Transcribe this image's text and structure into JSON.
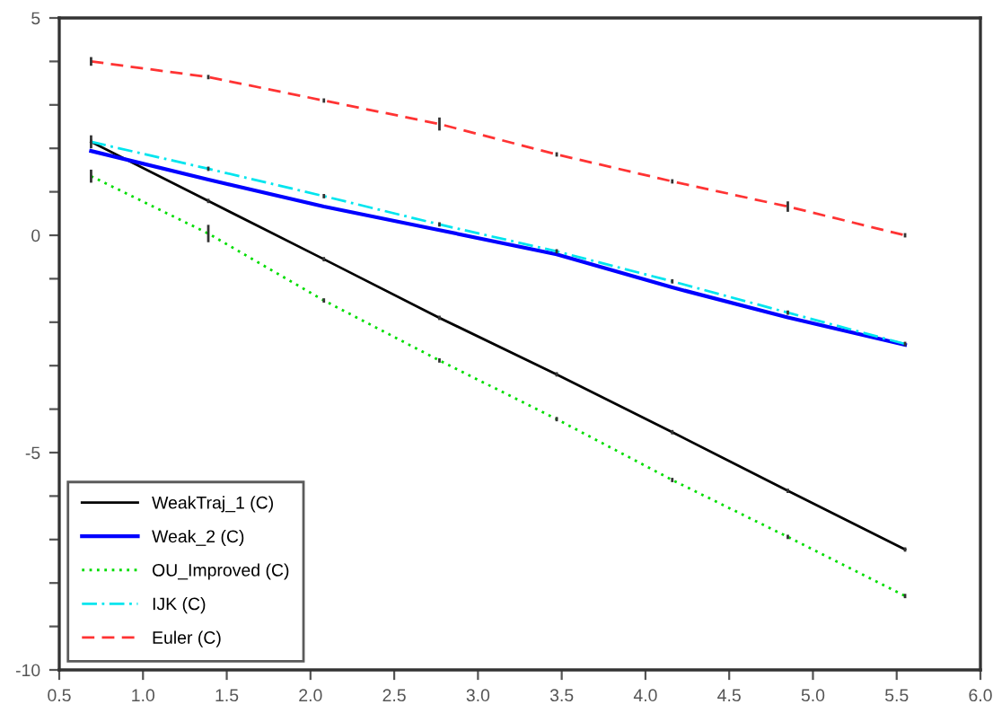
{
  "chart_data": {
    "type": "line",
    "x": [
      0.69,
      1.39,
      2.08,
      2.77,
      3.47,
      4.16,
      4.85,
      5.55
    ],
    "series": [
      {
        "name": "WeakTraj_1 (C)",
        "color": "#000000",
        "line_style": "solid",
        "values": [
          2.15,
          0.79,
          -0.55,
          -1.9,
          -3.2,
          -4.53,
          -5.88,
          -7.23
        ],
        "errors": [
          0.15,
          0.05,
          0.05,
          0.05,
          0.05,
          0.05,
          0.05,
          0.05
        ]
      },
      {
        "name": "Weak_2 (C)",
        "color": "#0000ff",
        "line_style": "solid",
        "values": [
          1.94,
          1.28,
          0.66,
          0.12,
          -0.44,
          -1.2,
          -1.89,
          -2.52
        ]
      },
      {
        "name": "OU_Improved (C)",
        "color": "#00dd00",
        "line_style": "dotted",
        "values": [
          1.36,
          0.04,
          -1.5,
          -2.88,
          -4.23,
          -5.63,
          -6.94,
          -8.3
        ],
        "errors": [
          0.15,
          0.2,
          0.05,
          0.05,
          0.05,
          0.05,
          0.05,
          0.05
        ]
      },
      {
        "name": "IJK (C)",
        "color": "#00e5ee",
        "line_style": "dashdot",
        "values": [
          2.15,
          1.53,
          0.9,
          0.25,
          -0.37,
          -1.06,
          -1.78,
          -2.5
        ],
        "errors": [
          0.05,
          0.05,
          0.05,
          0.05,
          0.05,
          0.05,
          0.05,
          0.05
        ]
      },
      {
        "name": "Euler (C)",
        "color": "#ff3333",
        "line_style": "dashed",
        "values": [
          4.0,
          3.64,
          3.1,
          2.56,
          1.86,
          1.24,
          0.66,
          0.0
        ],
        "errors": [
          0.1,
          0.05,
          0.05,
          0.15,
          0.05,
          0.05,
          0.12,
          0.05
        ]
      }
    ],
    "xlim": [
      0.5,
      6.0
    ],
    "xticks": [
      {
        "value": 0.5,
        "label": "0.5"
      },
      {
        "value": 1.0,
        "label": "1.0"
      },
      {
        "value": 1.5,
        "label": "1.5"
      },
      {
        "value": 2.0,
        "label": "2.0"
      },
      {
        "value": 2.5,
        "label": "2.5"
      },
      {
        "value": 3.0,
        "label": "3.0"
      },
      {
        "value": 3.5,
        "label": "3.5"
      },
      {
        "value": 4.0,
        "label": "4.0"
      },
      {
        "value": 4.5,
        "label": "4.5"
      },
      {
        "value": 5.0,
        "label": "5.0"
      },
      {
        "value": 5.5,
        "label": "5.5"
      },
      {
        "value": 6.0,
        "label": "6.0"
      }
    ],
    "ylim": [
      -10,
      5
    ],
    "yticks": [
      -10,
      {
        "value": -9,
        "label": null
      },
      {
        "value": -8,
        "label": null
      },
      {
        "value": -7,
        "label": null
      },
      {
        "value": -6,
        "label": null
      },
      -5,
      {
        "value": -4,
        "label": null
      },
      {
        "value": -3,
        "label": null
      },
      {
        "value": -2,
        "label": null
      },
      {
        "value": -1,
        "label": null
      },
      0,
      {
        "value": 1,
        "label": null
      },
      {
        "value": 2,
        "label": null
      },
      {
        "value": 3,
        "label": null
      },
      {
        "value": 4,
        "label": null
      },
      5
    ],
    "grid": false,
    "legend": "bottom left",
    "marker": "none"
  }
}
